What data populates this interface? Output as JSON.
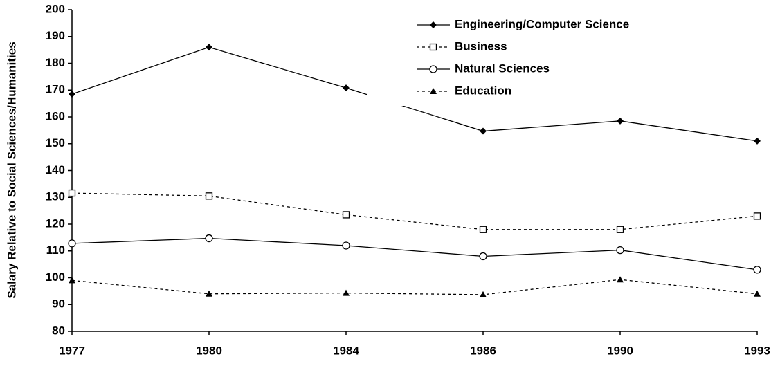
{
  "chart_data": {
    "type": "line",
    "ylabel": "Salary Relative to Social Sciences/Humanities",
    "categories": [
      "1977",
      "1980",
      "1984",
      "1986",
      "1990",
      "1993"
    ],
    "ylim": [
      80,
      200
    ],
    "yticks": [
      80,
      90,
      100,
      110,
      120,
      130,
      140,
      150,
      160,
      170,
      180,
      190,
      200
    ],
    "grid": false,
    "legend": "top-right",
    "series": [
      {
        "name": "Engineering/Computer Science",
        "color": "#000000",
        "marker": "diamond",
        "dashed": false,
        "values": [
          168.5,
          186,
          170.8,
          154.7,
          158.5,
          151
        ]
      },
      {
        "name": "Business",
        "color": "#000000",
        "marker": "square",
        "dashed": true,
        "values": [
          131.6,
          130.5,
          123.5,
          118,
          118,
          123
        ]
      },
      {
        "name": "Natural Sciences",
        "color": "#000000",
        "marker": "circle",
        "dashed": false,
        "values": [
          112.8,
          114.7,
          112,
          108,
          110.3,
          103
        ]
      },
      {
        "name": "Education",
        "color": "#000000",
        "marker": "triangle",
        "dashed": true,
        "values": [
          99,
          94,
          94.3,
          93.7,
          99.3,
          94
        ]
      }
    ]
  }
}
